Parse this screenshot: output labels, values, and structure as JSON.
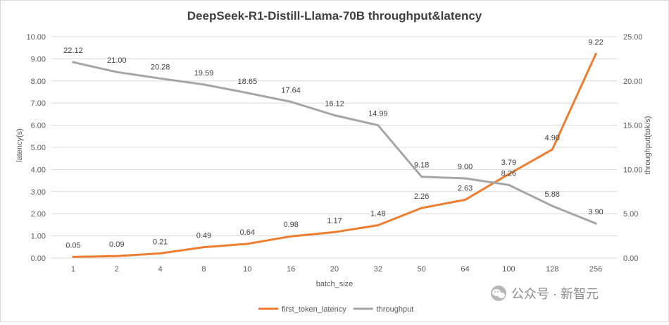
{
  "chart_data": {
    "type": "line",
    "title": "DeepSeek-R1-Distill-Llama-70B throughput&latency",
    "xlabel": "batch_size",
    "ylabel_left": "latency(s)",
    "ylabel_right": "throughput(tok/s)",
    "categories": [
      "1",
      "2",
      "4",
      "8",
      "10",
      "16",
      "20",
      "32",
      "50",
      "64",
      "100",
      "128",
      "256"
    ],
    "yticks_left": [
      "0.00",
      "1.00",
      "2.00",
      "3.00",
      "4.00",
      "5.00",
      "6.00",
      "7.00",
      "8.00",
      "9.00",
      "10.00"
    ],
    "yticks_right": [
      "0.00",
      "5.00",
      "10.00",
      "15.00",
      "20.00",
      "25.00"
    ],
    "ylim_left": [
      0,
      10
    ],
    "ylim_right": [
      0,
      25
    ],
    "grid": true,
    "legend": "bottom-center",
    "series": [
      {
        "name": "first_token_latency",
        "axis": "left",
        "color": "#ED7D31",
        "values": [
          0.05,
          0.09,
          0.21,
          0.49,
          0.64,
          0.98,
          1.17,
          1.48,
          2.26,
          2.63,
          3.79,
          4.9,
          9.22
        ],
        "labels": [
          "0.05",
          "0.09",
          "0.21",
          "0.49",
          "0.64",
          "0.98",
          "1.17",
          "1.48",
          "2.26",
          "2.63",
          "3.79",
          "4.90",
          "9.22"
        ]
      },
      {
        "name": "throughput",
        "axis": "right",
        "color": "#A5A5A5",
        "values": [
          22.12,
          21.0,
          20.28,
          19.59,
          18.65,
          17.64,
          16.12,
          14.99,
          9.18,
          9.0,
          8.26,
          5.88,
          3.9
        ],
        "labels": [
          "22.12",
          "21.00",
          "20.28",
          "19.59",
          "18.65",
          "17.64",
          "16.12",
          "14.99",
          "9.18",
          "9.00",
          "8.26",
          "5.88",
          "3.90"
        ]
      }
    ]
  },
  "watermark": {
    "text": "公众号 · 新智元",
    "icon": "wechat-icon"
  }
}
